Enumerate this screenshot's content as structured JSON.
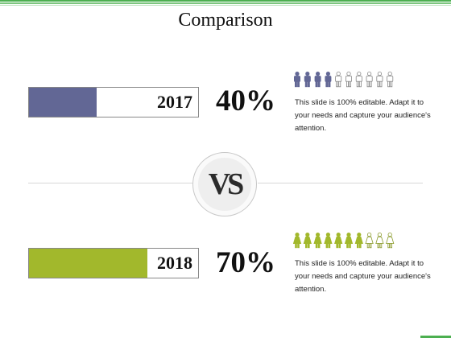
{
  "slide": {
    "title": "Comparison",
    "vs_label": "VS"
  },
  "comparisons": [
    {
      "year": "2017",
      "percent_label": "40%",
      "value_fraction": 0.4,
      "filled_icons": 4,
      "total_icons": 10,
      "icon": "person-icon",
      "color": "#626795",
      "description": "This slide is 100% editable. Adapt it to your needs and capture your audience's attention."
    },
    {
      "year": "2018",
      "percent_label": "70%",
      "value_fraction": 0.7,
      "filled_icons": 7,
      "total_icons": 10,
      "icon": "woman-icon",
      "color": "#a2b82c",
      "description": "This slide is 100% editable. Adapt it to your needs and capture your audience's attention."
    }
  ],
  "colors": {
    "accent_green": "#4caf50",
    "divider": "#d8d8d8"
  }
}
